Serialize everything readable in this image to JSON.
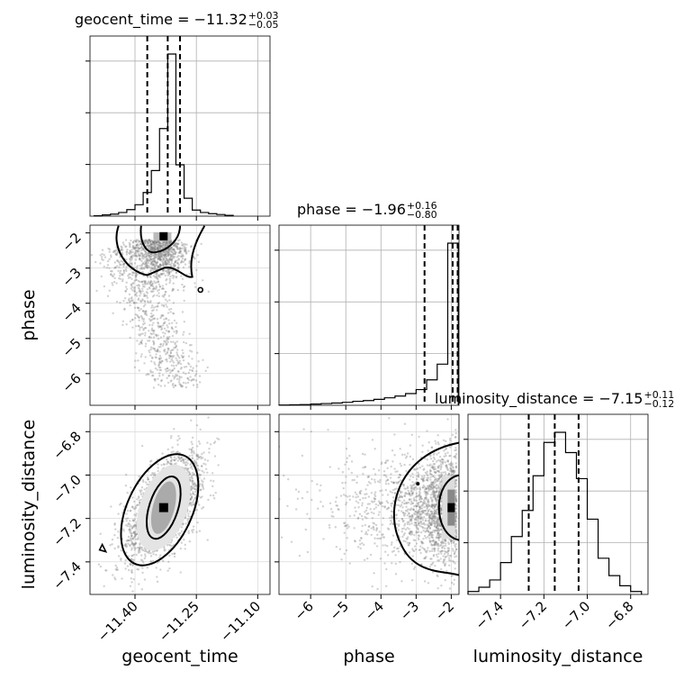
{
  "chart_data": {
    "type": "corner",
    "parameters": [
      "geocent_time",
      "phase",
      "luminosity_distance"
    ],
    "axes": {
      "geocent_time": {
        "range": [
          -11.51,
          -11.07
        ],
        "ticks": [
          -11.4,
          -11.25,
          -11.1
        ],
        "tick_labels": [
          "−11.40",
          "−11.25",
          "−11.10"
        ],
        "label": "geocent_time"
      },
      "phase": {
        "range": [
          -6.9,
          -1.78
        ],
        "ticks": [
          -6,
          -5,
          -4,
          -3,
          -2
        ],
        "tick_labels": [
          "−6",
          "−5",
          "−4",
          "−3",
          "−2"
        ],
        "label": "phase"
      },
      "luminosity_distance": {
        "range": [
          -7.55,
          -6.72
        ],
        "ticks": [
          -7.4,
          -7.2,
          -7.0,
          -6.8
        ],
        "tick_labels": [
          "−7.4",
          "−7.2",
          "−7.0",
          "−6.8"
        ],
        "label": "luminosity_distance"
      }
    },
    "titles": [
      {
        "parameter": "geocent_time",
        "text": "geocent_time = −11.32",
        "plus": "+0.03",
        "minus": "−0.05",
        "median": -11.32,
        "q_low": -11.37,
        "q_high": -11.29
      },
      {
        "parameter": "phase",
        "text": "phase = −1.96",
        "plus": "+0.16",
        "minus": "−0.80",
        "median": -1.96,
        "q_low": -2.76,
        "q_high": -1.8
      },
      {
        "parameter": "luminosity_distance",
        "text": "luminosity_distance = −7.15",
        "plus": "+0.11",
        "minus": "−0.12",
        "median": -7.15,
        "q_low": -7.27,
        "q_high": -7.04
      }
    ],
    "histograms": {
      "geocent_time": {
        "edges": [
          -11.5,
          -11.48,
          -11.46,
          -11.44,
          -11.42,
          -11.4,
          -11.38,
          -11.36,
          -11.34,
          -11.32,
          -11.3,
          -11.28,
          -11.26,
          -11.24,
          -11.22,
          -11.2,
          -11.18,
          -11.16
        ],
        "counts": [
          1,
          3,
          5,
          9,
          16,
          28,
          58,
          112,
          215,
          398,
          126,
          44,
          15,
          9,
          6,
          4,
          2
        ]
      },
      "phase": {
        "edges": [
          -6.9,
          -6.6,
          -6.3,
          -6.0,
          -5.7,
          -5.4,
          -5.1,
          -4.8,
          -4.5,
          -4.2,
          -3.9,
          -3.6,
          -3.3,
          -3.0,
          -2.7,
          -2.4,
          -2.1,
          -1.8
        ],
        "counts": [
          1,
          2,
          3,
          5,
          7,
          9,
          12,
          16,
          19,
          24,
          30,
          37,
          47,
          63,
          102,
          165,
          650
        ]
      },
      "luminosity_distance": {
        "edges": [
          -7.55,
          -7.5,
          -7.45,
          -7.4,
          -7.35,
          -7.3,
          -7.25,
          -7.2,
          -7.15,
          -7.1,
          -7.05,
          -7.0,
          -6.95,
          -6.9,
          -6.85,
          -6.8,
          -6.75
        ],
        "counts": [
          2,
          5,
          10,
          22,
          40,
          58,
          82,
          105,
          112,
          98,
          80,
          52,
          25,
          13,
          6,
          2
        ]
      }
    },
    "grid": true,
    "gray_points": "#7f7f7f",
    "contour_color": "#000000"
  }
}
